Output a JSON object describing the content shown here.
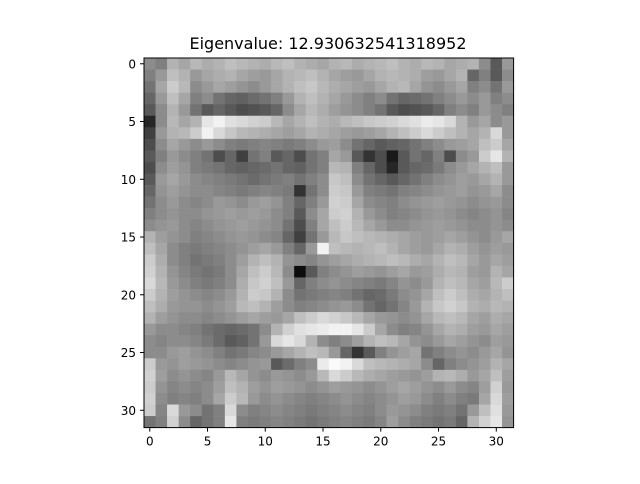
{
  "chart_data": {
    "type": "heatmap",
    "title": "Eigenvalue: 12.930632541318952",
    "xlabel": "",
    "ylabel": "",
    "colormap": "gray",
    "rows": 32,
    "cols": 32,
    "xlim": [
      -0.5,
      31.5
    ],
    "ylim": [
      31.5,
      -0.5
    ],
    "xticks": [
      0,
      5,
      10,
      15,
      20,
      25,
      30
    ],
    "yticks": [
      0,
      5,
      10,
      15,
      20,
      25,
      30
    ],
    "grid": false,
    "values": [
      [
        0.55,
        0.5,
        0.7,
        0.65,
        0.72,
        0.68,
        0.7,
        0.75,
        0.72,
        0.7,
        0.68,
        0.72,
        0.75,
        0.7,
        0.68,
        0.65,
        0.7,
        0.72,
        0.68,
        0.7,
        0.72,
        0.75,
        0.7,
        0.68,
        0.72,
        0.7,
        0.65,
        0.68,
        0.7,
        0.55,
        0.35,
        0.6
      ],
      [
        0.5,
        0.6,
        0.75,
        0.7,
        0.6,
        0.65,
        0.68,
        0.7,
        0.65,
        0.62,
        0.6,
        0.65,
        0.7,
        0.72,
        0.75,
        0.7,
        0.65,
        0.62,
        0.6,
        0.65,
        0.7,
        0.72,
        0.7,
        0.68,
        0.62,
        0.6,
        0.65,
        0.7,
        0.4,
        0.5,
        0.35,
        0.55
      ],
      [
        0.45,
        0.65,
        0.8,
        0.72,
        0.55,
        0.6,
        0.65,
        0.62,
        0.58,
        0.55,
        0.6,
        0.65,
        0.7,
        0.75,
        0.78,
        0.72,
        0.68,
        0.65,
        0.62,
        0.6,
        0.65,
        0.7,
        0.72,
        0.65,
        0.58,
        0.55,
        0.6,
        0.65,
        0.5,
        0.55,
        0.45,
        0.6
      ],
      [
        0.4,
        0.6,
        0.75,
        0.65,
        0.5,
        0.55,
        0.45,
        0.4,
        0.38,
        0.42,
        0.45,
        0.5,
        0.6,
        0.7,
        0.75,
        0.7,
        0.65,
        0.6,
        0.55,
        0.5,
        0.55,
        0.45,
        0.4,
        0.42,
        0.45,
        0.5,
        0.55,
        0.6,
        0.55,
        0.6,
        0.5,
        0.55
      ],
      [
        0.35,
        0.55,
        0.7,
        0.6,
        0.45,
        0.35,
        0.4,
        0.35,
        0.3,
        0.32,
        0.35,
        0.4,
        0.55,
        0.65,
        0.72,
        0.68,
        0.62,
        0.58,
        0.55,
        0.5,
        0.45,
        0.35,
        0.3,
        0.32,
        0.35,
        0.4,
        0.5,
        0.55,
        0.5,
        0.6,
        0.55,
        0.5
      ],
      [
        0.15,
        0.55,
        0.72,
        0.65,
        0.7,
        0.9,
        0.95,
        0.88,
        0.85,
        0.82,
        0.8,
        0.72,
        0.65,
        0.7,
        0.75,
        0.7,
        0.68,
        0.72,
        0.75,
        0.78,
        0.8,
        0.82,
        0.85,
        0.88,
        0.92,
        0.9,
        0.85,
        0.7,
        0.6,
        0.65,
        0.55,
        0.6
      ],
      [
        0.25,
        0.6,
        0.7,
        0.72,
        0.8,
        0.95,
        0.85,
        0.78,
        0.72,
        0.7,
        0.68,
        0.65,
        0.62,
        0.65,
        0.7,
        0.68,
        0.65,
        0.62,
        0.6,
        0.62,
        0.65,
        0.7,
        0.75,
        0.8,
        0.85,
        0.8,
        0.75,
        0.7,
        0.65,
        0.7,
        0.85,
        0.6
      ],
      [
        0.3,
        0.55,
        0.65,
        0.6,
        0.55,
        0.6,
        0.55,
        0.5,
        0.48,
        0.5,
        0.52,
        0.5,
        0.48,
        0.5,
        0.55,
        0.6,
        0.62,
        0.55,
        0.45,
        0.4,
        0.35,
        0.38,
        0.4,
        0.45,
        0.5,
        0.55,
        0.6,
        0.62,
        0.65,
        0.75,
        0.8,
        0.65
      ],
      [
        0.35,
        0.5,
        0.6,
        0.55,
        0.5,
        0.45,
        0.3,
        0.4,
        0.25,
        0.45,
        0.5,
        0.35,
        0.4,
        0.3,
        0.45,
        0.5,
        0.65,
        0.6,
        0.35,
        0.2,
        0.3,
        0.1,
        0.35,
        0.45,
        0.4,
        0.5,
        0.3,
        0.55,
        0.6,
        0.8,
        0.9,
        0.7
      ],
      [
        0.3,
        0.55,
        0.62,
        0.58,
        0.5,
        0.48,
        0.45,
        0.4,
        0.38,
        0.4,
        0.42,
        0.45,
        0.4,
        0.38,
        0.45,
        0.5,
        0.72,
        0.7,
        0.5,
        0.4,
        0.3,
        0.15,
        0.35,
        0.4,
        0.42,
        0.48,
        0.55,
        0.6,
        0.65,
        0.7,
        0.75,
        0.6
      ],
      [
        0.35,
        0.6,
        0.65,
        0.6,
        0.55,
        0.52,
        0.5,
        0.48,
        0.45,
        0.42,
        0.45,
        0.48,
        0.5,
        0.45,
        0.5,
        0.55,
        0.78,
        0.75,
        0.55,
        0.45,
        0.4,
        0.35,
        0.4,
        0.45,
        0.5,
        0.55,
        0.58,
        0.62,
        0.6,
        0.65,
        0.7,
        0.6
      ],
      [
        0.4,
        0.58,
        0.62,
        0.58,
        0.55,
        0.55,
        0.52,
        0.5,
        0.48,
        0.5,
        0.52,
        0.5,
        0.48,
        0.2,
        0.45,
        0.55,
        0.8,
        0.78,
        0.6,
        0.5,
        0.48,
        0.45,
        0.5,
        0.52,
        0.55,
        0.58,
        0.6,
        0.62,
        0.58,
        0.6,
        0.65,
        0.55
      ],
      [
        0.45,
        0.55,
        0.6,
        0.55,
        0.52,
        0.55,
        0.6,
        0.58,
        0.55,
        0.6,
        0.62,
        0.58,
        0.5,
        0.4,
        0.5,
        0.6,
        0.82,
        0.8,
        0.65,
        0.55,
        0.52,
        0.5,
        0.55,
        0.58,
        0.6,
        0.62,
        0.6,
        0.58,
        0.55,
        0.58,
        0.6,
        0.55
      ],
      [
        0.5,
        0.55,
        0.58,
        0.55,
        0.55,
        0.58,
        0.6,
        0.62,
        0.6,
        0.62,
        0.6,
        0.55,
        0.5,
        0.35,
        0.55,
        0.65,
        0.8,
        0.82,
        0.7,
        0.6,
        0.55,
        0.5,
        0.52,
        0.55,
        0.58,
        0.6,
        0.58,
        0.55,
        0.52,
        0.55,
        0.58,
        0.52
      ],
      [
        0.55,
        0.58,
        0.6,
        0.55,
        0.52,
        0.55,
        0.58,
        0.6,
        0.62,
        0.6,
        0.58,
        0.55,
        0.45,
        0.3,
        0.5,
        0.65,
        0.75,
        0.8,
        0.72,
        0.65,
        0.6,
        0.55,
        0.55,
        0.58,
        0.6,
        0.62,
        0.6,
        0.58,
        0.55,
        0.55,
        0.58,
        0.55
      ],
      [
        0.7,
        0.62,
        0.58,
        0.55,
        0.5,
        0.52,
        0.55,
        0.58,
        0.6,
        0.58,
        0.55,
        0.52,
        0.4,
        0.25,
        0.45,
        0.6,
        0.72,
        0.78,
        0.75,
        0.72,
        0.7,
        0.68,
        0.65,
        0.62,
        0.6,
        0.62,
        0.65,
        0.62,
        0.58,
        0.55,
        0.6,
        0.65
      ],
      [
        0.75,
        0.65,
        0.55,
        0.5,
        0.48,
        0.5,
        0.52,
        0.55,
        0.58,
        0.62,
        0.65,
        0.6,
        0.5,
        0.4,
        0.6,
        0.95,
        0.75,
        0.72,
        0.7,
        0.72,
        0.75,
        0.7,
        0.65,
        0.62,
        0.6,
        0.65,
        0.7,
        0.68,
        0.62,
        0.58,
        0.62,
        0.6
      ],
      [
        0.8,
        0.68,
        0.55,
        0.5,
        0.45,
        0.48,
        0.5,
        0.55,
        0.62,
        0.7,
        0.75,
        0.7,
        0.58,
        0.55,
        0.52,
        0.58,
        0.62,
        0.65,
        0.68,
        0.7,
        0.72,
        0.75,
        0.72,
        0.68,
        0.65,
        0.7,
        0.75,
        0.72,
        0.65,
        0.6,
        0.65,
        0.62
      ],
      [
        0.82,
        0.7,
        0.58,
        0.52,
        0.48,
        0.45,
        0.48,
        0.55,
        0.65,
        0.75,
        0.8,
        0.72,
        0.55,
        0.05,
        0.35,
        0.5,
        0.55,
        0.58,
        0.62,
        0.6,
        0.58,
        0.62,
        0.65,
        0.6,
        0.62,
        0.68,
        0.72,
        0.7,
        0.62,
        0.6,
        0.7,
        0.65
      ],
      [
        0.85,
        0.72,
        0.6,
        0.55,
        0.5,
        0.48,
        0.5,
        0.55,
        0.68,
        0.78,
        0.82,
        0.75,
        0.6,
        0.4,
        0.5,
        0.55,
        0.58,
        0.55,
        0.52,
        0.5,
        0.48,
        0.52,
        0.58,
        0.55,
        0.6,
        0.7,
        0.75,
        0.72,
        0.65,
        0.62,
        0.72,
        0.8
      ],
      [
        0.8,
        0.7,
        0.62,
        0.58,
        0.55,
        0.52,
        0.55,
        0.6,
        0.7,
        0.8,
        0.78,
        0.7,
        0.55,
        0.45,
        0.48,
        0.5,
        0.52,
        0.5,
        0.45,
        0.4,
        0.42,
        0.48,
        0.55,
        0.58,
        0.65,
        0.75,
        0.8,
        0.75,
        0.68,
        0.65,
        0.7,
        0.75
      ],
      [
        0.75,
        0.68,
        0.6,
        0.58,
        0.58,
        0.55,
        0.58,
        0.62,
        0.72,
        0.75,
        0.7,
        0.62,
        0.55,
        0.5,
        0.52,
        0.55,
        0.58,
        0.6,
        0.55,
        0.45,
        0.4,
        0.45,
        0.52,
        0.6,
        0.7,
        0.78,
        0.82,
        0.78,
        0.7,
        0.68,
        0.72,
        0.7
      ],
      [
        0.7,
        0.62,
        0.58,
        0.55,
        0.55,
        0.52,
        0.55,
        0.58,
        0.62,
        0.65,
        0.62,
        0.6,
        0.65,
        0.75,
        0.8,
        0.85,
        0.82,
        0.78,
        0.72,
        0.65,
        0.6,
        0.58,
        0.55,
        0.58,
        0.65,
        0.72,
        0.75,
        0.72,
        0.65,
        0.62,
        0.68,
        0.65
      ],
      [
        0.6,
        0.55,
        0.55,
        0.52,
        0.5,
        0.45,
        0.42,
        0.4,
        0.42,
        0.45,
        0.55,
        0.7,
        0.82,
        0.88,
        0.9,
        0.92,
        0.95,
        0.95,
        0.9,
        0.8,
        0.65,
        0.55,
        0.5,
        0.52,
        0.58,
        0.65,
        0.7,
        0.68,
        0.62,
        0.6,
        0.65,
        0.62
      ],
      [
        0.55,
        0.52,
        0.55,
        0.55,
        0.52,
        0.48,
        0.42,
        0.35,
        0.38,
        0.45,
        0.6,
        0.85,
        0.9,
        0.85,
        0.7,
        0.55,
        0.5,
        0.55,
        0.62,
        0.7,
        0.75,
        0.72,
        0.65,
        0.58,
        0.55,
        0.6,
        0.65,
        0.62,
        0.58,
        0.55,
        0.62,
        0.6
      ],
      [
        0.55,
        0.55,
        0.6,
        0.62,
        0.58,
        0.55,
        0.5,
        0.45,
        0.48,
        0.52,
        0.55,
        0.6,
        0.65,
        0.7,
        0.75,
        0.72,
        0.6,
        0.4,
        0.2,
        0.35,
        0.5,
        0.58,
        0.62,
        0.65,
        0.45,
        0.5,
        0.55,
        0.58,
        0.55,
        0.6,
        0.65,
        0.58
      ],
      [
        0.8,
        0.6,
        0.58,
        0.62,
        0.6,
        0.58,
        0.55,
        0.52,
        0.55,
        0.58,
        0.6,
        0.35,
        0.42,
        0.5,
        0.55,
        0.92,
        0.98,
        0.95,
        0.85,
        0.75,
        0.72,
        0.7,
        0.68,
        0.65,
        0.55,
        0.4,
        0.5,
        0.55,
        0.58,
        0.62,
        0.7,
        0.65
      ],
      [
        0.82,
        0.62,
        0.55,
        0.58,
        0.55,
        0.52,
        0.6,
        0.72,
        0.65,
        0.58,
        0.55,
        0.6,
        0.58,
        0.55,
        0.6,
        0.72,
        0.85,
        0.8,
        0.72,
        0.68,
        0.65,
        0.62,
        0.6,
        0.58,
        0.62,
        0.7,
        0.72,
        0.68,
        0.6,
        0.65,
        0.75,
        0.62
      ],
      [
        0.8,
        0.58,
        0.52,
        0.55,
        0.52,
        0.55,
        0.62,
        0.75,
        0.7,
        0.62,
        0.58,
        0.62,
        0.6,
        0.58,
        0.55,
        0.58,
        0.62,
        0.6,
        0.58,
        0.55,
        0.58,
        0.62,
        0.65,
        0.62,
        0.58,
        0.55,
        0.6,
        0.55,
        0.52,
        0.62,
        0.82,
        0.6
      ],
      [
        0.82,
        0.55,
        0.5,
        0.52,
        0.5,
        0.55,
        0.65,
        0.8,
        0.72,
        0.6,
        0.55,
        0.58,
        0.55,
        0.52,
        0.5,
        0.52,
        0.55,
        0.58,
        0.55,
        0.52,
        0.55,
        0.58,
        0.62,
        0.6,
        0.55,
        0.5,
        0.55,
        0.5,
        0.48,
        0.65,
        0.85,
        0.62
      ],
      [
        0.8,
        0.52,
        0.85,
        0.6,
        0.55,
        0.45,
        0.5,
        0.85,
        0.55,
        0.5,
        0.52,
        0.55,
        0.52,
        0.5,
        0.48,
        0.5,
        0.52,
        0.55,
        0.52,
        0.5,
        0.55,
        0.6,
        0.58,
        0.55,
        0.5,
        0.48,
        0.5,
        0.45,
        0.6,
        0.75,
        0.88,
        0.6
      ],
      [
        0.45,
        0.5,
        0.82,
        0.55,
        0.4,
        0.45,
        0.5,
        0.9,
        0.5,
        0.48,
        0.5,
        0.52,
        0.5,
        0.48,
        0.45,
        0.48,
        0.5,
        0.52,
        0.5,
        0.48,
        0.52,
        0.62,
        0.55,
        0.5,
        0.48,
        0.45,
        0.48,
        0.4,
        0.7,
        0.82,
        0.9,
        0.58
      ]
    ]
  }
}
